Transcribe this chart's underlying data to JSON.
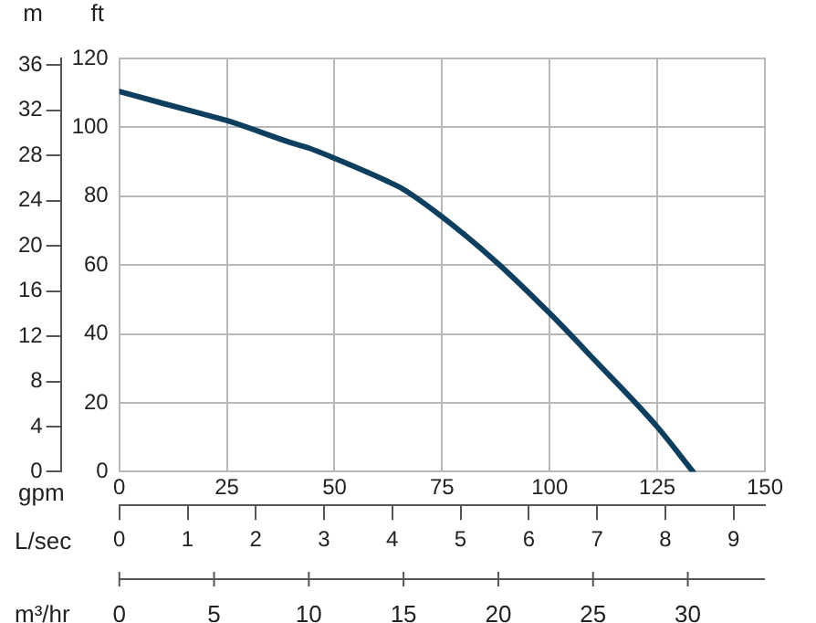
{
  "chart_data": {
    "type": "line",
    "xlabel": "gpm",
    "ylabel": "ft",
    "y2label": "m",
    "x2label": "L/sec",
    "x": [
      0,
      10,
      22,
      25,
      40,
      44,
      50,
      62,
      66,
      75,
      87.5,
      100,
      110,
      125,
      133.3
    ],
    "series": [
      {
        "color": "#0f3f5f",
        "values": [
          110.4,
          107,
          103,
          102,
          95.5,
          94,
          91,
          84.5,
          82,
          74,
          61,
          46,
          33,
          13,
          0
        ]
      }
    ],
    "xlim": [
      0,
      150
    ],
    "xticks": [
      0,
      25,
      50,
      75,
      100,
      125,
      150
    ],
    "ylim": [
      0,
      120
    ],
    "yticks": [
      0,
      20,
      40,
      60,
      80,
      100,
      120
    ],
    "y2lim": [
      0,
      36.6
    ],
    "y2ticks": [
      0,
      4,
      8,
      12,
      16,
      20,
      24,
      28,
      32,
      36
    ],
    "x2lim": [
      0,
      9.46
    ],
    "x2ticks": [
      0,
      1,
      2,
      3,
      4,
      5,
      6,
      7,
      8,
      9
    ],
    "annotations": [
      "m³/hr",
      {
        "text": "0",
        "x": 0
      },
      {
        "text": "5",
        "x": 22.01
      },
      {
        "text": "10",
        "x": 44.03
      },
      {
        "text": "15",
        "x": 66.04
      },
      {
        "text": "20",
        "x": 88.06
      },
      {
        "text": "25",
        "x": 110.07
      },
      {
        "text": "30",
        "x": 132.09
      }
    ],
    "grid": true,
    "legend": false,
    "marker": "none",
    "line_style": "solid"
  }
}
